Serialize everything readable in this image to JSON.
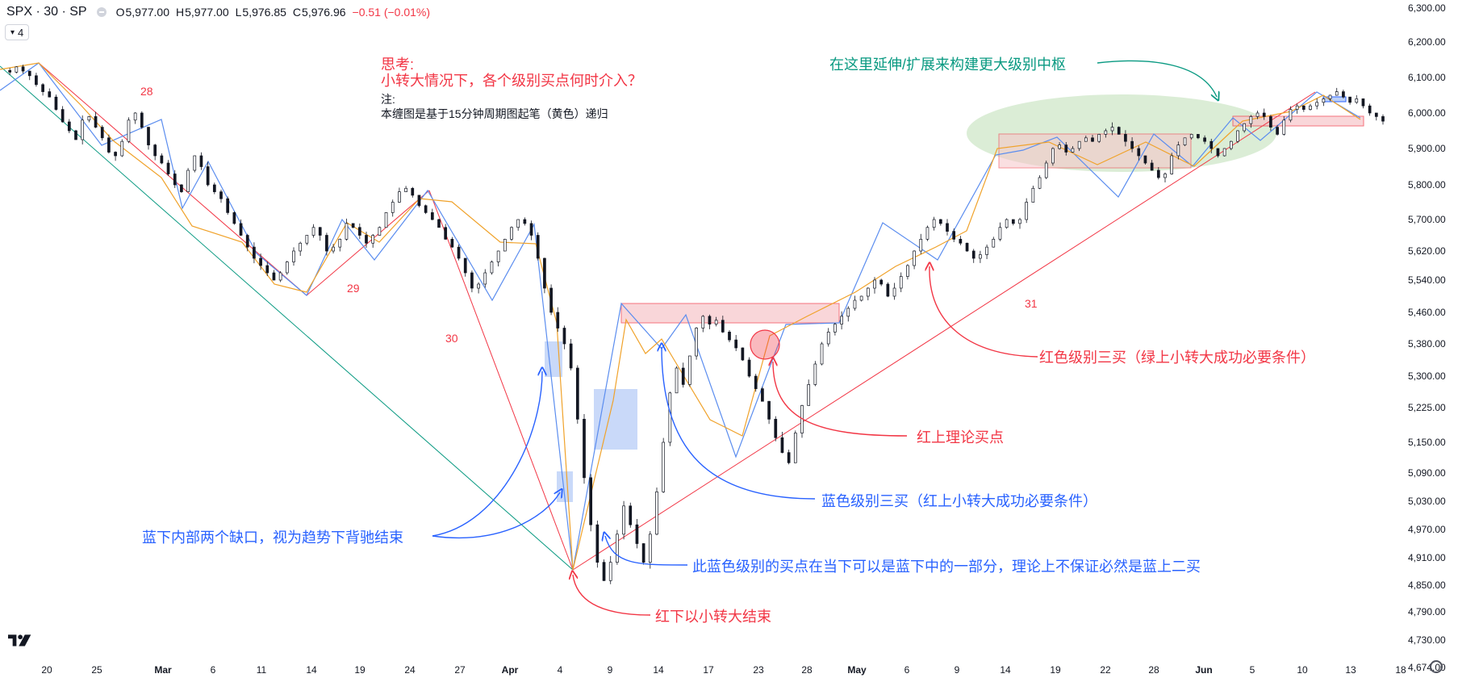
{
  "header": {
    "symbol": "SPX · 30 · SP",
    "o_label": "O",
    "o_value": "5,977.00",
    "h_label": "H",
    "h_value": "5,977.00",
    "l_label": "L",
    "l_value": "5,976.85",
    "c_label": "C",
    "c_value": "5,976.96",
    "change": "−0.51 (−0.01%)"
  },
  "badge": {
    "icon": "chevron-down-icon",
    "count": "4"
  },
  "colors": {
    "red": "#f23645",
    "blue": "#2962ff",
    "green": "#089981",
    "blue_stroke": "#5b8def",
    "orange": "#f0a22a",
    "gray_axis": "#131722",
    "box_red_fill": "#f7c5c9",
    "box_blue_fill": "#bcd0f8",
    "green_ellipse": "#cfe7c8"
  },
  "chart_data": {
    "type": "line",
    "title": "",
    "ylim": [
      4640,
      6315
    ],
    "y_ticks": [
      6300,
      6200,
      6100,
      6000,
      5900,
      5800,
      5700,
      5620,
      5540,
      5460,
      5380,
      5300,
      5225,
      5150,
      5090,
      5030,
      4970,
      4910,
      4850,
      4790,
      4730,
      4674
    ],
    "y_tick_labels": [
      "6,300.00",
      "6,200.00",
      "6,100.00",
      "6,000.00",
      "5,900.00",
      "5,800.00",
      "5,700.00",
      "5,620.00",
      "5,540.00",
      "5,460.00",
      "5,380.00",
      "5,300.00",
      "5,225.00",
      "5,150.00",
      "5,090.00",
      "5,030.00",
      "4,970.00",
      "4,910.00",
      "4,850.00",
      "4,790.00",
      "4,730.00",
      "4,674.00"
    ],
    "x_tick_labels": [
      "20",
      "25",
      "Mar",
      "6",
      "11",
      "14",
      "19",
      "24",
      "27",
      "Apr",
      "4",
      "9",
      "14",
      "17",
      "23",
      "28",
      "May",
      "6",
      "9",
      "14",
      "19",
      "22",
      "28",
      "Jun",
      "5",
      "10",
      "13",
      "18"
    ],
    "x_tick_bold": [
      "Mar",
      "Apr",
      "May",
      "Jun"
    ],
    "price_series": [
      6120,
      6115,
      6130,
      6118,
      6105,
      6080,
      6060,
      6045,
      6010,
      5975,
      5950,
      5925,
      5980,
      5990,
      5960,
      5930,
      5890,
      5880,
      5920,
      5980,
      6000,
      5960,
      5910,
      5880,
      5860,
      5830,
      5800,
      5780,
      5840,
      5880,
      5850,
      5800,
      5780,
      5760,
      5720,
      5690,
      5660,
      5630,
      5600,
      5580,
      5560,
      5540,
      5560,
      5590,
      5620,
      5640,
      5660,
      5680,
      5660,
      5620,
      5630,
      5650,
      5690,
      5680,
      5660,
      5640,
      5660,
      5680,
      5720,
      5750,
      5780,
      5790,
      5770,
      5740,
      5720,
      5700,
      5680,
      5650,
      5630,
      5600,
      5560,
      5520,
      5530,
      5560,
      5590,
      5620,
      5650,
      5680,
      5700,
      5690,
      5660,
      5600,
      5520,
      5460,
      5420,
      5380,
      5320,
      5200,
      5080,
      4980,
      4900,
      4860,
      4900,
      4960,
      5020,
      4980,
      4940,
      4900,
      4960,
      5050,
      5150,
      5260,
      5320,
      5280,
      5350,
      5420,
      5450,
      5430,
      5440,
      5410,
      5390,
      5370,
      5340,
      5300,
      5270,
      5240,
      5200,
      5160,
      5130,
      5110,
      5170,
      5230,
      5280,
      5330,
      5380,
      5410,
      5430,
      5450,
      5470,
      5490,
      5500,
      5520,
      5540,
      5530,
      5500,
      5520,
      5550,
      5580,
      5620,
      5650,
      5680,
      5700,
      5690,
      5670,
      5650,
      5640,
      5620,
      5600,
      5610,
      5630,
      5650,
      5680,
      5700,
      5690,
      5700,
      5750,
      5790,
      5820,
      5860,
      5900,
      5910,
      5890,
      5900,
      5920,
      5930,
      5920,
      5940,
      5950,
      5960,
      5940,
      5920,
      5900,
      5880,
      5860,
      5840,
      5820,
      5830,
      5880,
      5910,
      5930,
      5940,
      5930,
      5920,
      5900,
      5880,
      5900,
      5920,
      5950,
      5970,
      5990,
      6000,
      5990,
      5960,
      5940,
      5980,
      6010,
      6020,
      6010,
      6020,
      6030,
      6040,
      6050,
      6060,
      6045,
      6030,
      6040,
      6020,
      6000,
      5990,
      5977
    ],
    "annotations": {
      "wave_28": "28",
      "wave_29": "29",
      "wave_30": "30",
      "wave_31": "31",
      "think_title": "思考:",
      "think_question": "小转大情况下，各个级别买点何时介入？",
      "note_title": "注:",
      "note_text": "本缠图是基于15分钟周期图起笔（黄色）递归",
      "green_note": "在这里延伸/扩展来构建更大级别中枢",
      "red_third_buy": "红色级别三买（绿上小转大成功必要条件）",
      "red_theory_buy": "红上理论买点",
      "blue_third_buy": "蓝色级别三买（红上小转大成功必要条件）",
      "blue_gaps": "蓝下内部两个缺口，视为趋势下背驰结束",
      "blue_buy_point": "此蓝色级别的买点在当下可以是蓝下中的一部分，理论上不保证必然是蓝上二买",
      "red_end": "红下以小转大结束"
    }
  }
}
